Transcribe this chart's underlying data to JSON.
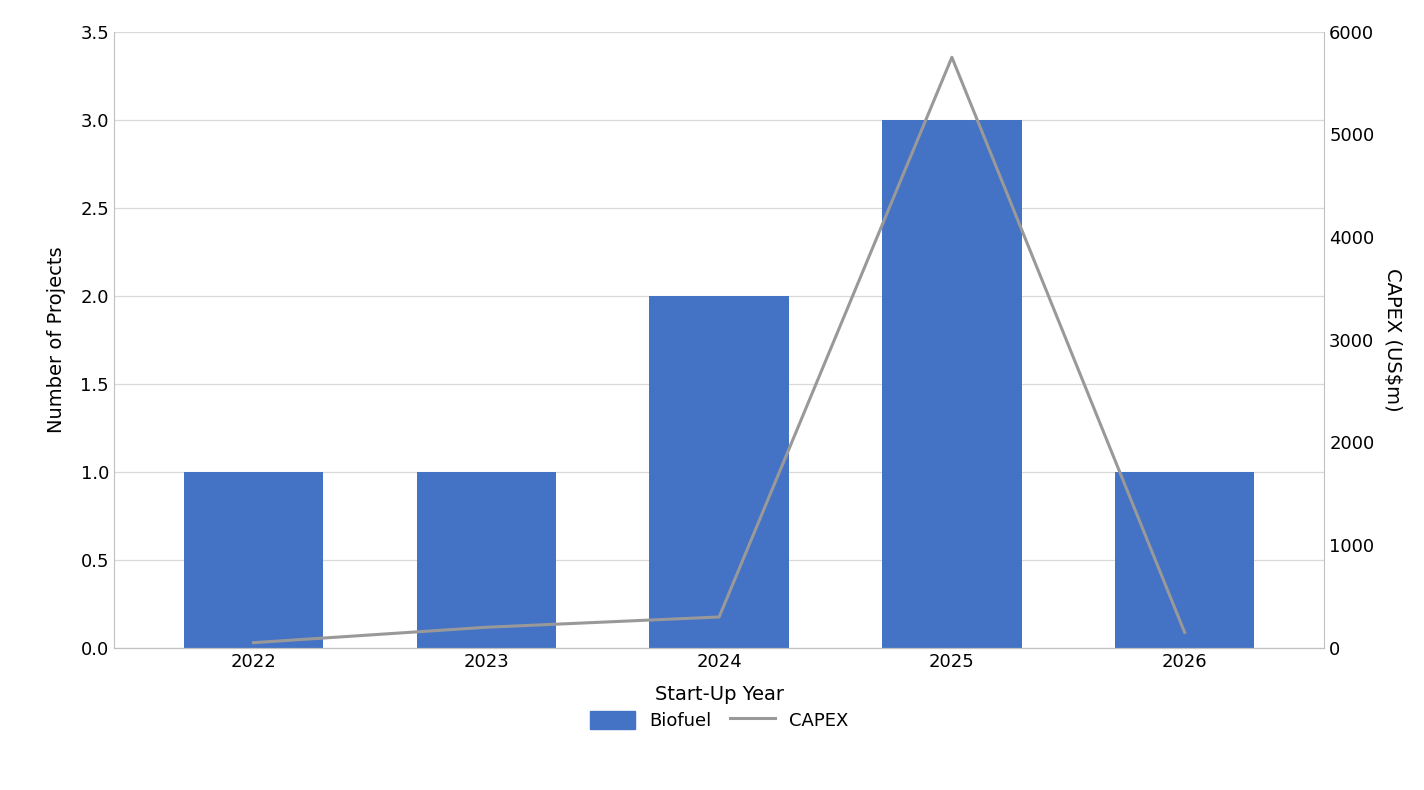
{
  "years": [
    2022,
    2023,
    2024,
    2025,
    2026
  ],
  "num_projects": [
    1,
    1,
    2,
    3,
    1
  ],
  "capex": [
    50,
    200,
    300,
    5750,
    150
  ],
  "bar_color": "#4472C4",
  "line_color": "#999999",
  "ylabel_left": "Number of Projects",
  "ylabel_right": "CAPEX (US$m)",
  "xlabel": "Start-Up Year",
  "ylim_left": [
    0,
    3.5
  ],
  "ylim_right": [
    0,
    6000
  ],
  "yticks_left": [
    0,
    0.5,
    1.0,
    1.5,
    2.0,
    2.5,
    3.0,
    3.5
  ],
  "yticks_right": [
    0,
    1000,
    2000,
    3000,
    4000,
    5000,
    6000
  ],
  "legend_labels": [
    "Biofuel",
    "CAPEX"
  ],
  "background_color": "#ffffff",
  "grid_color": "#d9d9d9",
  "figsize": [
    14.24,
    7.9
  ],
  "dpi": 100,
  "bar_width": 0.6,
  "xlim": [
    2021.4,
    2026.6
  ]
}
